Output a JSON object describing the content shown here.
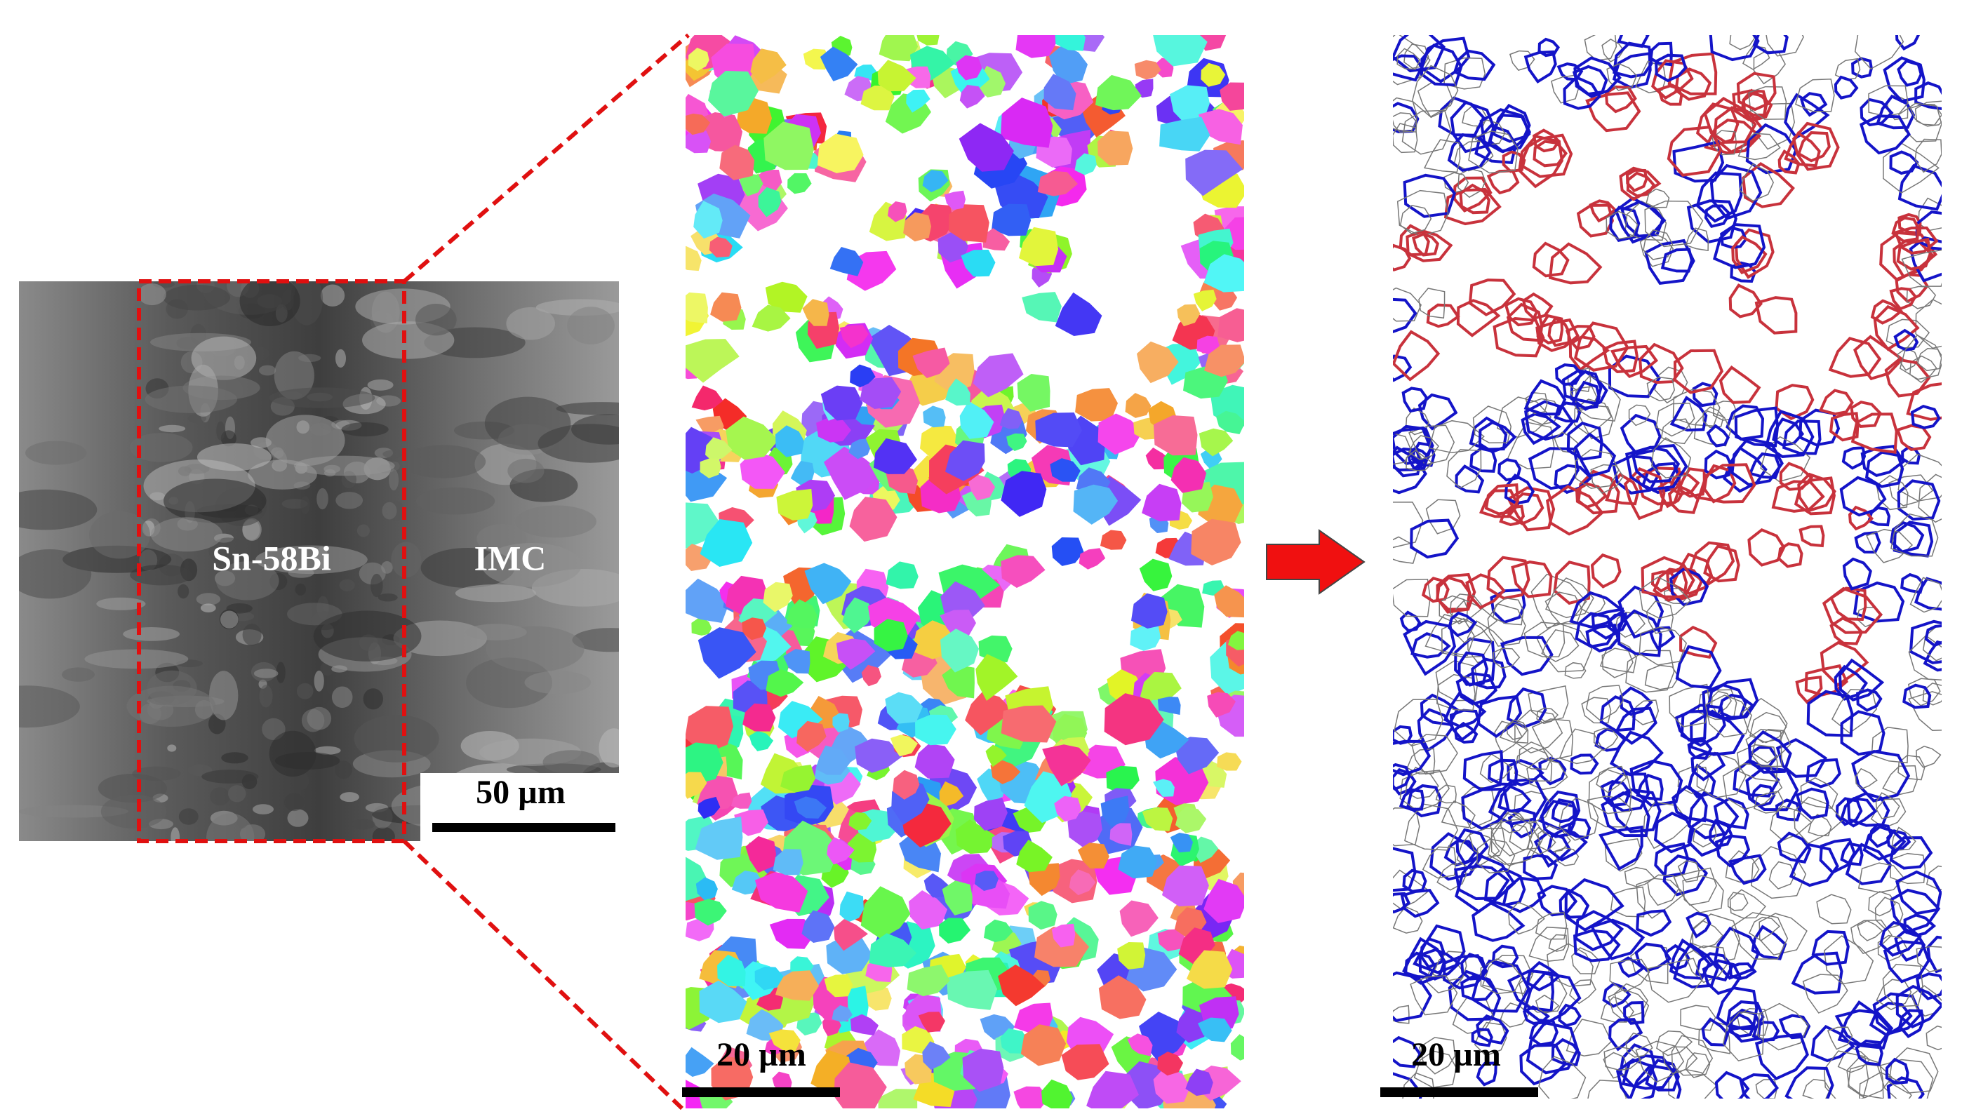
{
  "panels": [
    {
      "labels": [
        "Sn-58Bi",
        "IMC"
      ],
      "scale_bar": "50 µm"
    },
    {
      "scale_bar": "20 µm"
    },
    {
      "scale_bar": "20 µm"
    }
  ]
}
